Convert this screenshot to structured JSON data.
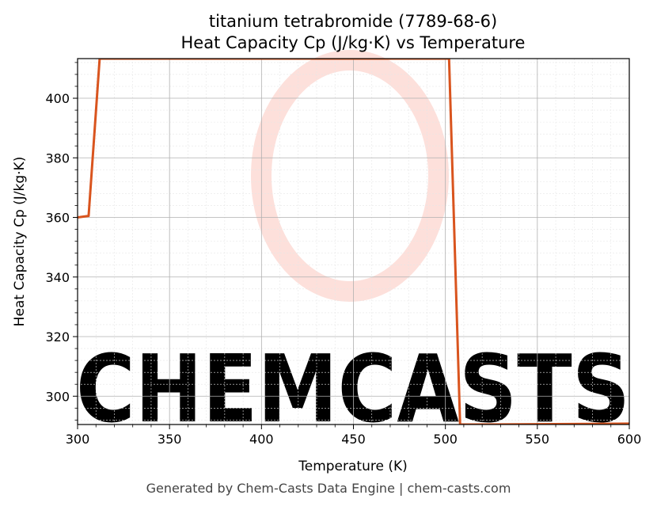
{
  "chart_data": {
    "type": "line",
    "title": "titanium tetrabromide (7789-68-6)",
    "subtitle": "Heat Capacity Cp (J/kg·K) vs Temperature",
    "xlabel": "Temperature (K)",
    "ylabel": "Heat Capacity Cp (J/kg·K)",
    "xlim": [
      300,
      600
    ],
    "ylim": [
      290.5,
      413.3
    ],
    "xticks": [
      300,
      350,
      400,
      450,
      500,
      550,
      600
    ],
    "yticks": [
      300,
      320,
      340,
      360,
      380,
      400
    ],
    "grid": true,
    "series": [
      {
        "color": "#d9541e",
        "x": [
          300,
          306,
          312,
          318,
          330,
          350,
          400,
          450,
          490,
          502,
          508,
          514,
          550,
          600
        ],
        "y": [
          360,
          360.5,
          413.3,
          413.3,
          413.3,
          413.3,
          413.3,
          413.3,
          413.3,
          413.3,
          290.5,
          290.5,
          290.6,
          290.8
        ]
      }
    ]
  },
  "watermark": {
    "text": "CHEMCASTS",
    "color": "#fde0db"
  },
  "footer": {
    "text": "Generated by Chem-Casts Data Engine | chem-casts.com"
  }
}
